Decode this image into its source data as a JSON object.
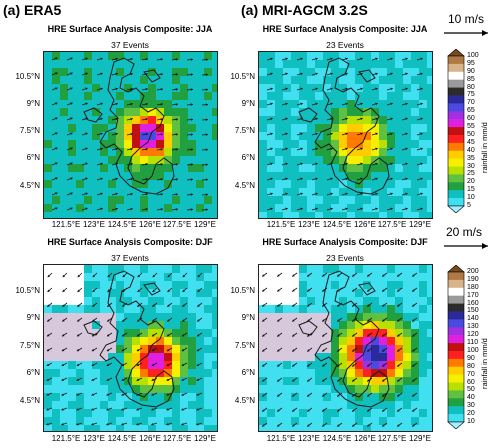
{
  "columns": [
    "(a) ERA5",
    "(a) MRI-AGCM 3.2S"
  ],
  "panels": [
    {
      "title": "HRE Surface Analysis Composite: JJA",
      "events": "37 Events",
      "season": "JJA"
    },
    {
      "title": "HRE Surface Analysis Composite: JJA",
      "events": "23 Events",
      "season": "JJA"
    },
    {
      "title": "HRE Surface Analysis Composite: DJF",
      "events": "37 Events",
      "season": "DJF"
    },
    {
      "title": "HRE Surface Analysis Composite: DJF",
      "events": "23 Events",
      "season": "DJF"
    }
  ],
  "lat_ticks": [
    "10.5°N",
    "9°N",
    "7.5°N",
    "6°N",
    "4.5°N"
  ],
  "lon_ticks": [
    "121.5°E",
    "123°E",
    "124.5°E",
    "126°E",
    "127.5°E",
    "129°E"
  ],
  "wind_refs": [
    "10 m/s",
    "20 m/s"
  ],
  "colorbars": [
    {
      "unit": "rainfall in mm/d",
      "levels": [
        "100",
        "95",
        "90",
        "85",
        "80",
        "75",
        "70",
        "65",
        "60",
        "55",
        "50",
        "45",
        "40",
        "35",
        "30",
        "25",
        "20",
        "15",
        "10",
        "5"
      ],
      "colors": [
        "#7a4a1e",
        "#b07a45",
        "#d9b48a",
        "#ffffff",
        "#9a9a9a",
        "#2b2b2b",
        "#2a2a9a",
        "#4a4ae0",
        "#a030e0",
        "#e020e0",
        "#c01010",
        "#ff2020",
        "#ff7a00",
        "#ffcc00",
        "#f5f000",
        "#b8e000",
        "#60c040",
        "#20a040",
        "#10c0c0",
        "#40e0f0",
        "#a0f0ff"
      ]
    },
    {
      "unit": "rainfall in mm/d",
      "levels": [
        "200",
        "190",
        "180",
        "170",
        "160",
        "150",
        "140",
        "130",
        "120",
        "110",
        "100",
        "90",
        "80",
        "70",
        "60",
        "50",
        "40",
        "30",
        "20",
        "10"
      ],
      "colors": [
        "#7a4a1e",
        "#b07a45",
        "#d9b48a",
        "#ffffff",
        "#9a9a9a",
        "#2b2b2b",
        "#2a2a9a",
        "#4a4ae0",
        "#a030e0",
        "#e020e0",
        "#c01010",
        "#ff2020",
        "#ff7a00",
        "#ffcc00",
        "#f5f000",
        "#b8e000",
        "#60c040",
        "#20a040",
        "#10c0c0",
        "#40e0f0",
        "#a0f0ff"
      ]
    }
  ],
  "colors": {
    "background_shade_jja": "#7aa8a8",
    "background_shade_djf": "#8fb0b0",
    "low_shade": "#d8c8dc",
    "coast": "#222222"
  }
}
